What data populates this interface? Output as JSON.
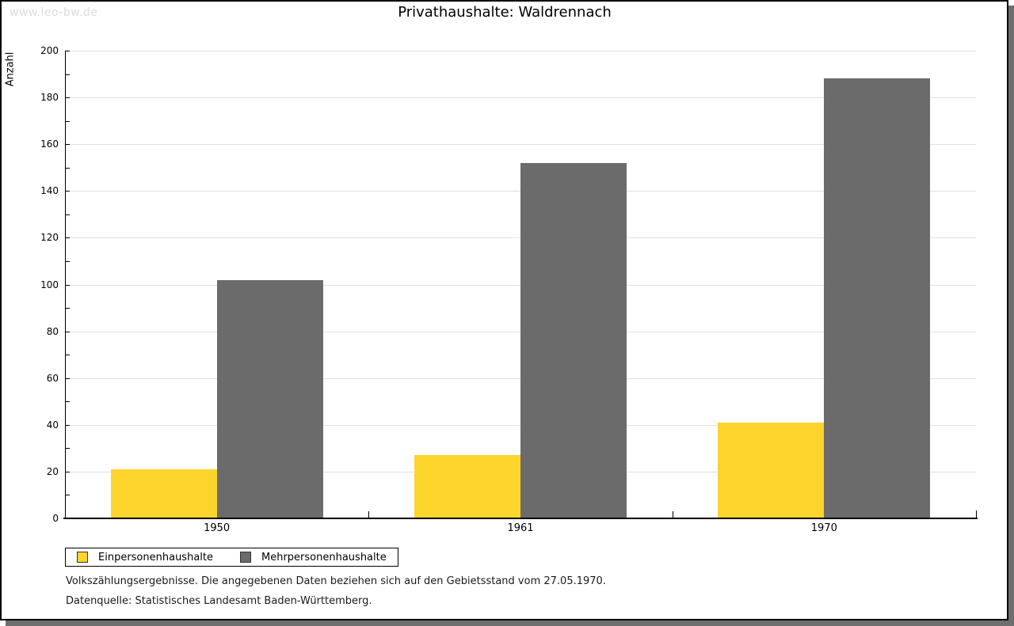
{
  "watermark": "www.leo-bw.de",
  "title": "Privathaushalte: Waldrennach",
  "chart_data": {
    "type": "bar",
    "title": "Privathaushalte: Waldrennach",
    "xlabel": "",
    "ylabel": "Anzahl",
    "categories": [
      "1950",
      "1961",
      "1970"
    ],
    "series": [
      {
        "name": "Einpersonenhaushalte",
        "color": "#FCD42C",
        "values": [
          21,
          27,
          41
        ]
      },
      {
        "name": "Mehrpersonenhaushalte",
        "color": "#6B6B6B",
        "values": [
          102,
          152,
          188
        ]
      }
    ],
    "ylim": [
      0,
      200
    ],
    "ytick_step": 20,
    "yminor_step": 10,
    "grid": true,
    "gridline_color": "#E0E0E0",
    "legend_position": "bottom-left"
  },
  "footnotes": {
    "line1": "Volkszählungsergebnisse. Die angegebenen Daten beziehen sich auf den Gebietsstand vom 27.05.1970.",
    "line2": "Datenquelle: Statistisches Landesamt Baden-Württemberg."
  }
}
